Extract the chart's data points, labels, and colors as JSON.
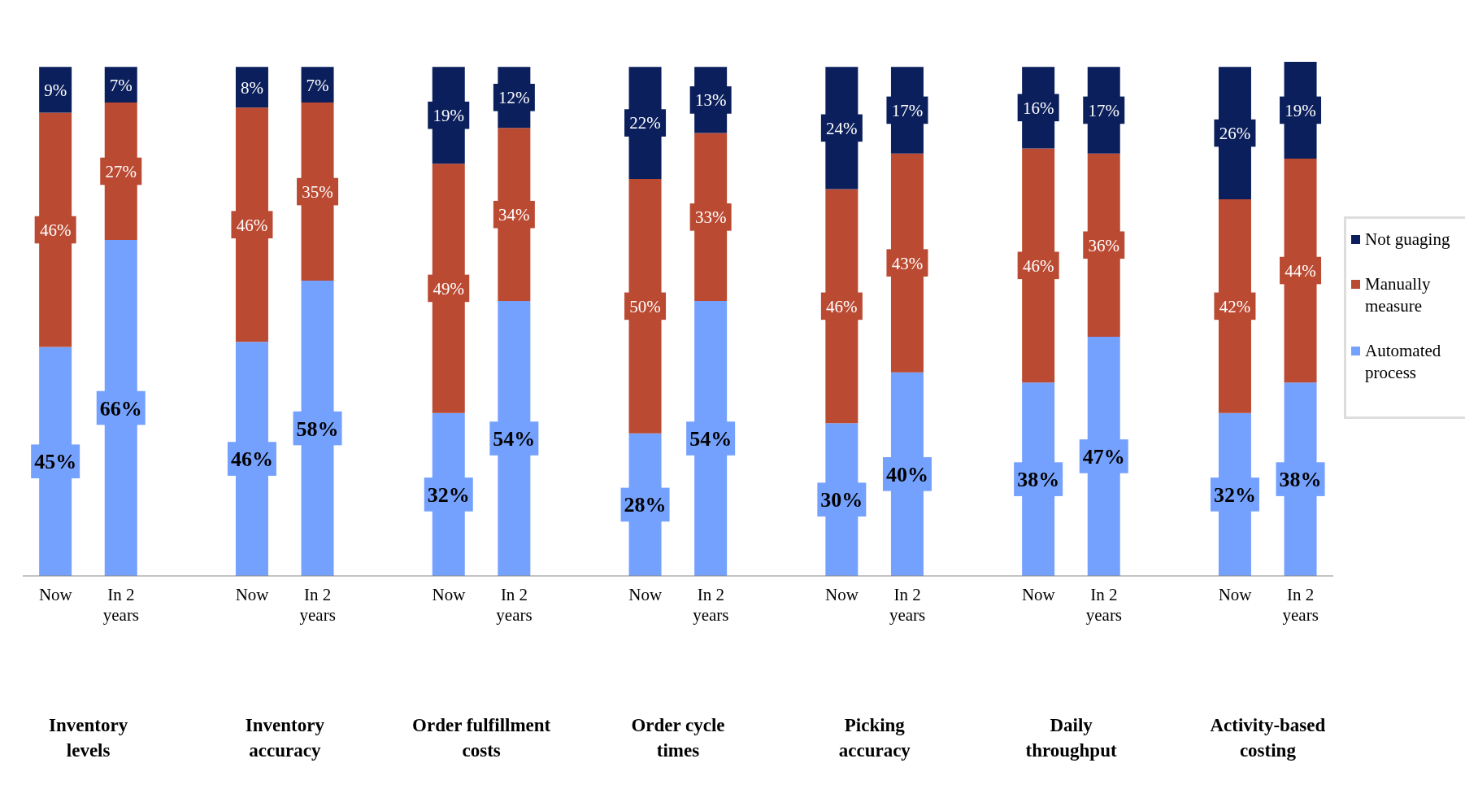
{
  "chart_data": {
    "type": "bar",
    "stacked": true,
    "legend": "right",
    "tick_labels": "x",
    "categories": [
      "Now",
      "In 2 years",
      null,
      "Now",
      "In 2 years",
      null,
      "Now",
      "In 2 years",
      null,
      "Now",
      "In 2 years",
      null,
      "Now",
      "In 2 years",
      null,
      "Now",
      "In 2 years",
      null,
      "Now",
      "In 2 years"
    ],
    "series": [
      {
        "name": "Automated process",
        "color": "#75a1fe",
        "values": [
          45,
          66,
          null,
          46,
          58,
          null,
          32,
          54,
          null,
          28,
          54,
          null,
          30,
          40,
          null,
          38,
          47,
          null,
          32,
          38
        ],
        "value_labels": [
          "45%",
          "66%",
          null,
          "46%",
          "58%",
          null,
          "32%",
          "54%",
          null,
          "28%",
          "54%",
          null,
          "30%",
          "40%",
          null,
          "38%",
          "47%",
          null,
          "32%",
          "38%"
        ]
      },
      {
        "name": "Manually measure",
        "color": "#bb4a32",
        "values": [
          46,
          27,
          null,
          46,
          35,
          null,
          49,
          34,
          null,
          50,
          33,
          null,
          46,
          43,
          null,
          46,
          36,
          null,
          42,
          44
        ],
        "value_labels": [
          "46%",
          "27%",
          null,
          "46%",
          "35%",
          null,
          "49%",
          "34%",
          null,
          "50%",
          "33%",
          null,
          "46%",
          "43%",
          null,
          "46%",
          "36%",
          null,
          "42%",
          "44%"
        ]
      },
      {
        "name": "Not guaging",
        "color": "#0b1f5c",
        "values": [
          9,
          7,
          null,
          8,
          7,
          null,
          19,
          12,
          null,
          22,
          13,
          null,
          24,
          17,
          null,
          16,
          17,
          null,
          26,
          19
        ],
        "value_labels": [
          "9%",
          "7%",
          null,
          "8%",
          "7%",
          null,
          "19%",
          "12%",
          null,
          "22%",
          "13%",
          null,
          "24%",
          "17%",
          null,
          "16%",
          "17%",
          null,
          "26%",
          "19%"
        ]
      }
    ],
    "annotations": [
      "Inventory levels",
      "Inventory accuracy",
      "Order fulfillment costs",
      "Order cycle times",
      "Picking accuracy",
      "Daily throughput",
      "Activity-based costing"
    ]
  }
}
